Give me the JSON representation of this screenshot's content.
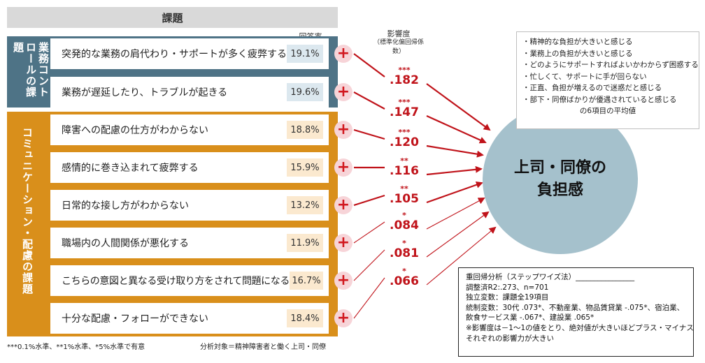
{
  "header": {
    "title": "課題"
  },
  "answer_rate_label": "回答率",
  "coef_header": {
    "title": "影響度",
    "subtitle": "（標準化偏回帰係数）"
  },
  "groups": [
    {
      "label": "業務コントロールの課題",
      "color": "#4e7386"
    },
    {
      "label": "コミュニケーション・配慮の課題",
      "color": "#d98f1b"
    }
  ],
  "items": [
    {
      "label": "突発的な業務の肩代わり・サポートが多く疲弊する",
      "rate": "19.1%",
      "group": 0
    },
    {
      "label": "業務が遅延したり、トラブルが起きる",
      "rate": "19.6%",
      "group": 0
    },
    {
      "label": "障害への配慮の仕方がわからない",
      "rate": "18.8%",
      "group": 1
    },
    {
      "label": "感情的に巻き込まれて疲弊する",
      "rate": "15.9%",
      "group": 1
    },
    {
      "label": "日常的な接し方がわからない",
      "rate": "13.2%",
      "group": 1
    },
    {
      "label": "職場内の人間関係が悪化する",
      "rate": "11.9%",
      "group": 1
    },
    {
      "label": "こちらの意図と異なる受け取り方をされて問題になる",
      "rate": "16.7%",
      "group": 1
    },
    {
      "label": "十分な配慮・フォローができない",
      "rate": "18.4%",
      "group": 1
    }
  ],
  "plus_symbol": "+",
  "coefficients": [
    {
      "stars": "***",
      "value": ".182"
    },
    {
      "stars": "***",
      "value": ".147"
    },
    {
      "stars": "***",
      "value": ".120"
    },
    {
      "stars": "**",
      "value": ".116"
    },
    {
      "stars": "**",
      "value": ".105"
    },
    {
      "stars": "*",
      "value": ".084"
    },
    {
      "stars": "*",
      "value": ".081"
    },
    {
      "stars": "*",
      "value": ".066"
    }
  ],
  "target": {
    "line1": "上司・同僚の",
    "line2": "負担感"
  },
  "target_note": {
    "lines": [
      "・精神的な負担が大きいと感じる",
      "・業務上の負担が大きいと感じる",
      "・どのようにサポートすればよいかわからず困惑する",
      "・忙しくて、サポートに手が回らない",
      "・正直、負担が増えるので迷惑だと感じる",
      "・部下・同僚ばかりが優遇されていると感じる"
    ],
    "footer": "の6項目の平均値"
  },
  "regression_box": {
    "lines": [
      "重回帰分析（ステップワイズ法）________________",
      "調整済R2:.273、n=701",
      "独立変数：課題全19項目",
      "統制変数：30代 .073*、不動産業、物品賃貸業 -.075*、宿泊業、",
      "飲食サービス業 -.067*、建設業 .065*",
      "※影響度は－1～1の値をとり、絶対値が大きいほどプラス・マイナス",
      "それぞれの影響力が大きい"
    ]
  },
  "footnotes": {
    "significance": "***0.1%水準、**1%水準、*5%水準で有意",
    "subject": "分析対象＝精神障害者と働く上司・同僚"
  },
  "colors": {
    "arrow": "#c0131a",
    "plus_bg": "#f7d4d8",
    "target_bg": "#a5c1cc"
  }
}
